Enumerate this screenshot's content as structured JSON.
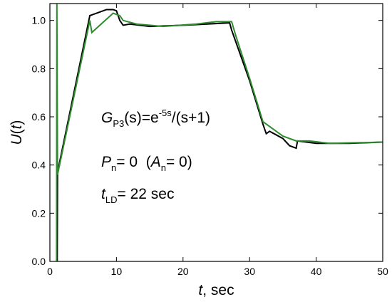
{
  "chart_data": {
    "type": "line",
    "xlabel": [
      {
        "text": "t",
        "role": "i"
      },
      {
        "text": ", sec",
        "role": "n"
      }
    ],
    "ylabel": [
      {
        "text": "U",
        "role": "i"
      },
      {
        "text": "(",
        "role": "n"
      },
      {
        "text": "t",
        "role": "i"
      },
      {
        "text": ")",
        "role": "n"
      }
    ],
    "annotations": [
      [
        {
          "text": "G",
          "role": "i"
        },
        {
          "text": "P3",
          "role": "sub"
        },
        {
          "text": "(s)=e",
          "role": "n"
        },
        {
          "text": "-5s",
          "role": "sup"
        },
        {
          "text": "/(s+1)",
          "role": "n"
        }
      ],
      [
        {
          "text": "P",
          "role": "i"
        },
        {
          "text": "n",
          "role": "sub"
        },
        {
          "text": "= 0  (",
          "role": "n"
        },
        {
          "text": "A",
          "role": "i"
        },
        {
          "text": "n",
          "role": "sub"
        },
        {
          "text": "= 0)",
          "role": "n"
        }
      ],
      [
        {
          "text": "t",
          "role": "i"
        },
        {
          "text": "LD",
          "role": "sub"
        },
        {
          "text": "= 22 sec",
          "role": "n"
        }
      ]
    ],
    "xlim": [
      0,
      50
    ],
    "xticks": [
      0,
      10,
      20,
      30,
      40,
      50
    ],
    "ylim": [
      0,
      1.07
    ],
    "yticks": [
      {
        "value": 0,
        "label": "0.0"
      },
      {
        "value": 0.2,
        "label": "0.2"
      },
      {
        "value": 0.4,
        "label": "0.4"
      },
      {
        "value": 0.6,
        "label": "0.6"
      },
      {
        "value": 0.8,
        "label": "0.8"
      },
      {
        "value": 1.0,
        "label": "1.0"
      }
    ],
    "series": [
      {
        "color": "#000000",
        "x": [
          1.1,
          1.15,
          6,
          7,
          8.5,
          9.5,
          10,
          10.5,
          11,
          12,
          15,
          20,
          27,
          27.3,
          30,
          32,
          32.5,
          33,
          35,
          36,
          37,
          37.2,
          40,
          42,
          45,
          50
        ],
        "values": [
          0,
          0.37,
          1.02,
          1.03,
          1.045,
          1.045,
          1.04,
          1.0,
          0.98,
          0.985,
          0.975,
          0.98,
          0.99,
          0.96,
          0.75,
          0.57,
          0.53,
          0.54,
          0.51,
          0.48,
          0.47,
          0.5,
          0.49,
          0.49,
          0.49,
          0.495
        ]
      },
      {
        "color": "#2e8b2e",
        "x": [
          1.0,
          1.05,
          1.15,
          6,
          6.3,
          9.5,
          10.5,
          11,
          13,
          17,
          22,
          25,
          27.3,
          28,
          30,
          32,
          33,
          35,
          37,
          39,
          42,
          50
        ],
        "values": [
          0,
          1.07,
          0.36,
          1.0,
          0.95,
          1.03,
          1.02,
          1.0,
          0.985,
          0.975,
          0.985,
          0.995,
          0.995,
          0.93,
          0.76,
          0.58,
          0.56,
          0.52,
          0.5,
          0.5,
          0.49,
          0.495
        ]
      }
    ]
  }
}
